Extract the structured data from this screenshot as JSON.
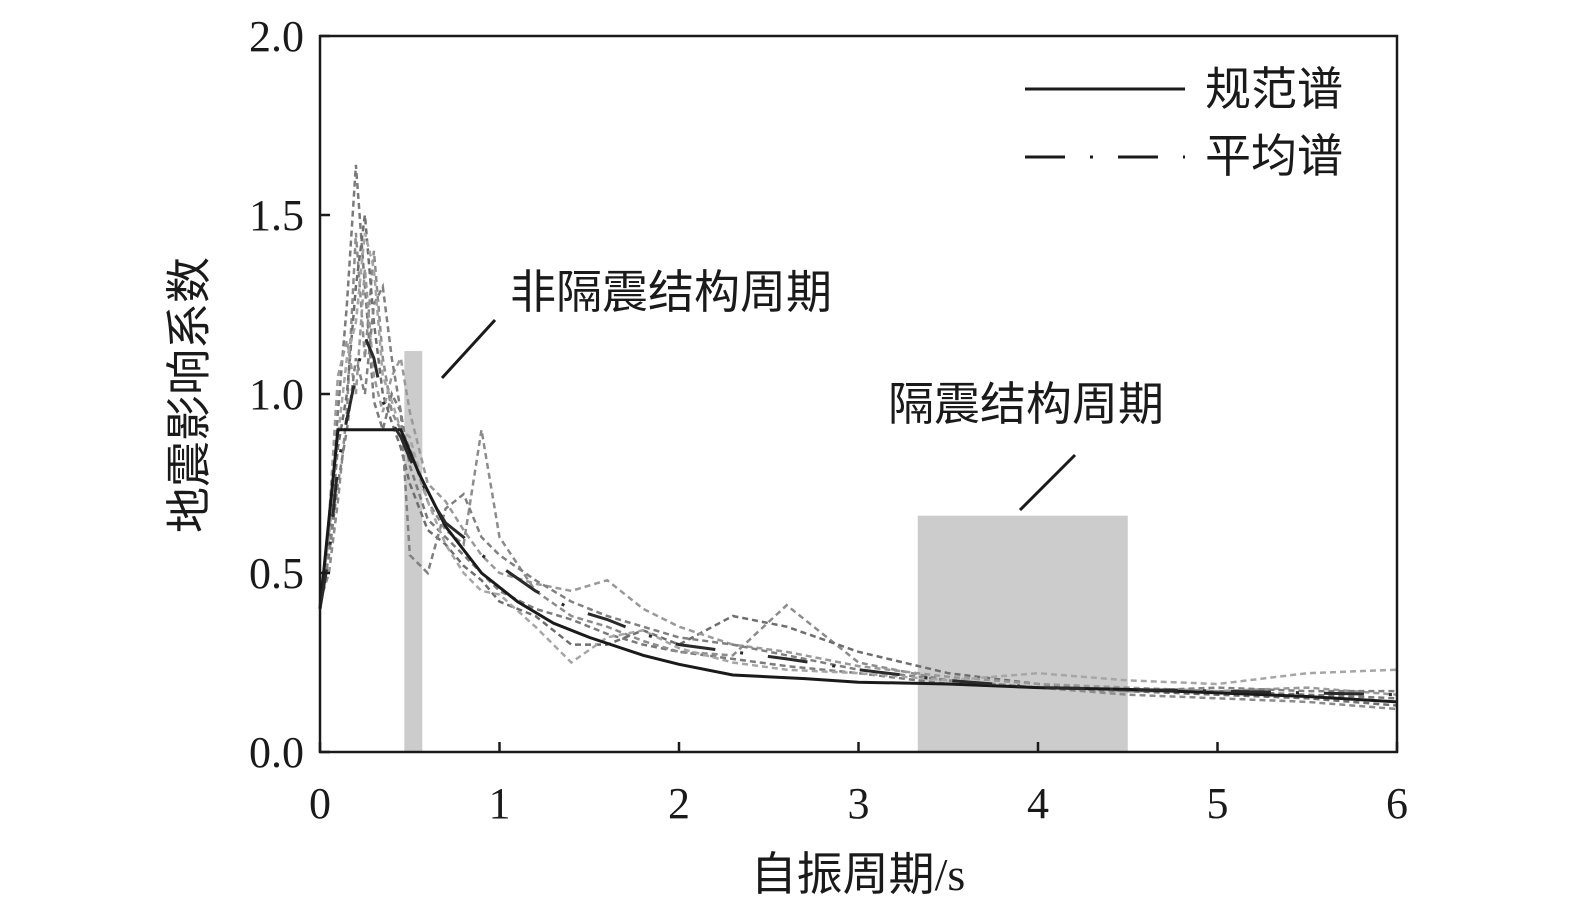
{
  "chart_data": {
    "type": "line",
    "title": "",
    "xlabel": "自振周期/s",
    "ylabel": "地震影响系数",
    "xlim": [
      0,
      6
    ],
    "ylim": [
      0,
      2.0
    ],
    "xticks": [
      0,
      1,
      2,
      3,
      4,
      5,
      6
    ],
    "yticks": [
      "0.0",
      "0.5",
      "1.0",
      "1.5",
      "2.0"
    ],
    "grid": false,
    "legend_position": "top-right",
    "series": [
      {
        "name": "规范谱",
        "style": "solid",
        "color": "#1a1a1a",
        "x": [
          0,
          0.1,
          0.45,
          0.55,
          0.7,
          0.9,
          1.1,
          1.3,
          1.5,
          1.8,
          2.0,
          2.3,
          2.7,
          3.0,
          3.5,
          4.0,
          4.5,
          5.0,
          5.5,
          6.0
        ],
        "y": [
          0.4,
          0.9,
          0.9,
          0.78,
          0.63,
          0.5,
          0.42,
          0.36,
          0.32,
          0.27,
          0.245,
          0.215,
          0.205,
          0.195,
          0.19,
          0.18,
          0.175,
          0.165,
          0.155,
          0.14
        ]
      },
      {
        "name": "平均谱",
        "style": "dashed",
        "color": "#2a2a2a",
        "x": [
          0,
          0.05,
          0.1,
          0.15,
          0.2,
          0.25,
          0.3,
          0.35,
          0.4,
          0.45,
          0.5,
          0.6,
          0.7,
          0.8,
          0.9,
          1.0,
          1.2,
          1.4,
          1.6,
          1.8,
          2.0,
          2.3,
          2.6,
          3.0,
          3.5,
          4.0,
          4.5,
          5.0,
          5.5,
          6.0
        ],
        "y": [
          0.4,
          0.55,
          0.8,
          0.93,
          1.05,
          1.16,
          1.1,
          0.98,
          0.92,
          0.88,
          0.82,
          0.72,
          0.64,
          0.6,
          0.55,
          0.52,
          0.45,
          0.4,
          0.37,
          0.33,
          0.3,
          0.28,
          0.26,
          0.23,
          0.2,
          0.18,
          0.175,
          0.17,
          0.165,
          0.16
        ]
      }
    ],
    "records": [
      {
        "x": [
          0,
          0.05,
          0.1,
          0.15,
          0.2,
          0.25,
          0.3,
          0.35,
          0.4,
          0.45,
          0.5,
          0.6,
          0.7,
          0.8,
          0.9,
          1.0,
          1.2,
          1.4,
          1.6,
          1.8,
          2.0,
          2.3,
          2.6,
          3.0,
          3.5,
          4.0,
          4.5,
          5.0,
          5.5,
          6.0
        ],
        "y": [
          0.41,
          0.62,
          0.95,
          1.25,
          1.64,
          1.3,
          0.98,
          0.9,
          1.0,
          0.95,
          0.8,
          0.65,
          0.6,
          0.55,
          0.5,
          0.45,
          0.4,
          0.37,
          0.33,
          0.3,
          0.28,
          0.26,
          0.24,
          0.22,
          0.19,
          0.18,
          0.17,
          0.17,
          0.16,
          0.15
        ]
      },
      {
        "x": [
          0,
          0.05,
          0.1,
          0.15,
          0.2,
          0.25,
          0.3,
          0.35,
          0.4,
          0.45,
          0.5,
          0.6,
          0.7,
          0.8,
          0.9,
          1.0,
          1.2,
          1.4,
          1.6,
          1.8,
          2.0,
          2.3,
          2.6,
          3.0,
          3.5,
          4.0,
          4.5,
          5.0,
          5.5,
          6.0
        ],
        "y": [
          0.42,
          0.5,
          0.7,
          0.95,
          1.45,
          1.1,
          1.4,
          1.1,
          0.95,
          0.9,
          0.85,
          0.7,
          0.62,
          0.58,
          0.9,
          0.6,
          0.45,
          0.38,
          0.35,
          0.31,
          0.28,
          0.27,
          0.41,
          0.25,
          0.2,
          0.18,
          0.16,
          0.15,
          0.14,
          0.12
        ]
      },
      {
        "x": [
          0,
          0.05,
          0.1,
          0.15,
          0.2,
          0.25,
          0.3,
          0.35,
          0.4,
          0.45,
          0.5,
          0.6,
          0.7,
          0.8,
          0.9,
          1.0,
          1.2,
          1.4,
          1.6,
          1.8,
          2.0,
          2.3,
          2.6,
          3.0,
          3.5,
          4.0,
          4.5,
          5.0,
          5.5,
          6.0
        ],
        "y": [
          0.4,
          0.58,
          0.85,
          1.0,
          1.3,
          1.5,
          1.2,
          1.0,
          0.92,
          0.85,
          0.75,
          0.62,
          0.58,
          0.52,
          0.48,
          0.42,
          0.38,
          0.3,
          0.3,
          0.34,
          0.3,
          0.38,
          0.35,
          0.28,
          0.22,
          0.19,
          0.17,
          0.16,
          0.15,
          0.13
        ]
      },
      {
        "x": [
          0,
          0.05,
          0.1,
          0.15,
          0.2,
          0.25,
          0.3,
          0.35,
          0.4,
          0.45,
          0.5,
          0.6,
          0.7,
          0.8,
          0.9,
          1.0,
          1.2,
          1.4,
          1.6,
          1.8,
          2.0,
          2.3,
          2.6,
          3.0,
          3.5,
          4.0,
          4.5,
          5.0,
          5.5,
          6.0
        ],
        "y": [
          0.41,
          0.65,
          1.05,
          1.15,
          1.0,
          1.35,
          1.05,
          0.95,
          1.05,
          1.1,
          0.95,
          0.75,
          0.7,
          0.62,
          0.55,
          0.5,
          0.47,
          0.45,
          0.48,
          0.4,
          0.35,
          0.3,
          0.28,
          0.24,
          0.21,
          0.19,
          0.18,
          0.17,
          0.18,
          0.16
        ]
      },
      {
        "x": [
          0,
          0.05,
          0.1,
          0.15,
          0.2,
          0.25,
          0.3,
          0.35,
          0.4,
          0.45,
          0.5,
          0.6,
          0.7,
          0.8,
          0.9,
          1.0,
          1.2,
          1.4,
          1.6,
          1.8,
          2.0,
          2.3,
          2.6,
          3.0,
          3.5,
          4.0,
          4.5,
          5.0,
          5.5,
          6.0
        ],
        "y": [
          0.4,
          0.55,
          0.75,
          0.9,
          1.1,
          1.0,
          1.25,
          1.3,
          1.1,
          0.95,
          0.55,
          0.5,
          0.68,
          0.72,
          0.6,
          0.55,
          0.48,
          0.42,
          0.38,
          0.35,
          0.32,
          0.3,
          0.27,
          0.23,
          0.2,
          0.18,
          0.17,
          0.18,
          0.17,
          0.17
        ]
      },
      {
        "x": [
          0,
          0.05,
          0.1,
          0.15,
          0.2,
          0.25,
          0.3,
          0.35,
          0.4,
          0.45,
          0.5,
          0.6,
          0.7,
          0.8,
          0.9,
          1.0,
          1.2,
          1.4,
          1.6,
          1.8,
          2.0,
          2.3,
          2.6,
          3.0,
          3.5,
          4.0,
          4.5,
          5.0,
          5.5,
          6.0
        ],
        "y": [
          0.42,
          0.6,
          0.88,
          1.1,
          1.2,
          1.45,
          1.35,
          1.05,
          0.98,
          0.9,
          0.88,
          0.7,
          0.58,
          0.5,
          0.45,
          0.44,
          0.35,
          0.25,
          0.32,
          0.34,
          0.29,
          0.25,
          0.23,
          0.22,
          0.2,
          0.22,
          0.2,
          0.19,
          0.22,
          0.23
        ]
      }
    ],
    "highlight_bands": [
      {
        "label": "非隔震结构周期",
        "x_range": [
          0.47,
          0.57
        ],
        "y_top": 1.12
      },
      {
        "label": "隔震结构周期",
        "x_range": [
          3.33,
          4.5
        ],
        "y_top": 0.66
      }
    ]
  }
}
